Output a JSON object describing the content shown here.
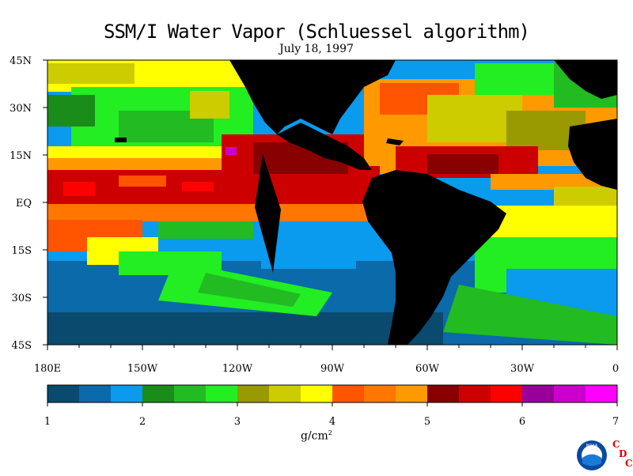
{
  "title": "SSM/I Water Vapor (Schluessel algorithm)",
  "subtitle": "July 18, 1997",
  "lat_labels": [
    "45N",
    "30N",
    "15N",
    "EQ",
    "15S",
    "30S",
    "45S"
  ],
  "lon_labels": [
    "180E",
    "150W",
    "120W",
    "90W",
    "60W",
    "30W",
    "0"
  ],
  "colorbar": {
    "tick_labels": [
      "1",
      "2",
      "3",
      "4",
      "5",
      "6",
      "7"
    ],
    "colors": [
      "#0a4a6e",
      "#0a6aaa",
      "#0a9aee",
      "#1a8c1a",
      "#22bb22",
      "#22ee22",
      "#999900",
      "#cccc00",
      "#ffff00",
      "#ff5500",
      "#ff7700",
      "#ff9900",
      "#880000",
      "#cc0000",
      "#ff0000",
      "#990099",
      "#cc00cc",
      "#ff00ff"
    ]
  },
  "unit": "g/cm",
  "unit_sup": "2",
  "logo": {
    "noaa_text": "NOAA",
    "letters": [
      "C",
      "D",
      "C"
    ],
    "letter_color": "#dd0000",
    "icon": "noaa-logo-icon"
  },
  "chart_data": {
    "type": "heatmap",
    "variable": "SSM/I Water Vapor",
    "units": "g/cm2",
    "colorbar_range": [
      1,
      7
    ],
    "lon_range": [
      -180,
      0
    ],
    "lat_range": [
      -45,
      45
    ],
    "colors": {
      "land": "#000000",
      "ocean_dry": "#0a6aaa",
      "ocean_moist": "#22ee22",
      "itcz_high": "#cc0000"
    }
  }
}
